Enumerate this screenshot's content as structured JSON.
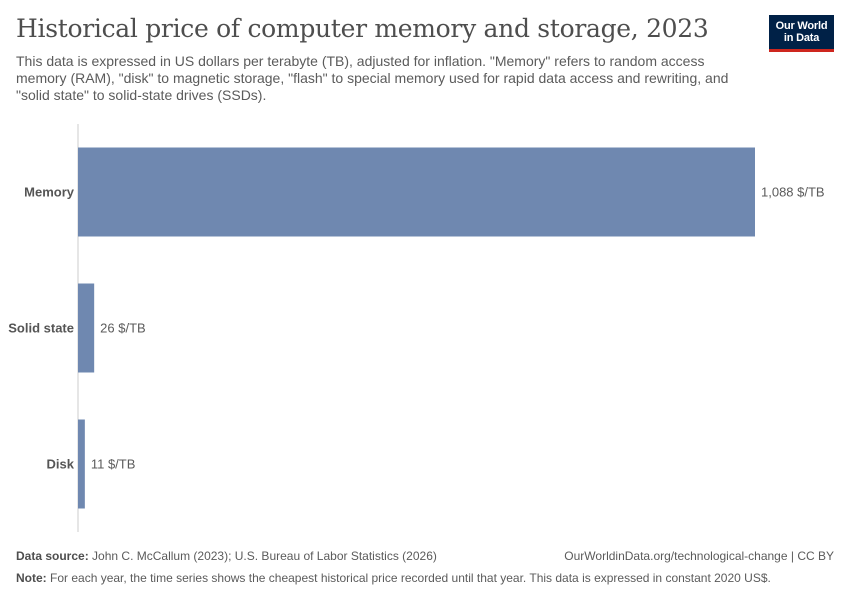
{
  "header": {
    "title": "Historical price of computer memory and storage, 2023",
    "subtitle": "This data is expressed in US dollars per terabyte (TB), adjusted for inflation. \"Memory\" refers to random access memory (RAM), \"disk\" to magnetic storage, \"flash\" to special memory used for rapid data access and rewriting, and \"solid state\" to solid-state drives (SSDs).",
    "logo_line1": "Our World",
    "logo_line2": "in Data"
  },
  "chart_data": {
    "type": "bar",
    "orientation": "horizontal",
    "categories": [
      "Memory",
      "Solid state",
      "Disk"
    ],
    "values": [
      1088,
      26,
      11
    ],
    "value_labels": [
      "1,088 $/TB",
      "26 $/TB",
      "11 $/TB"
    ],
    "color": "#6f88b0",
    "grid": false
  },
  "footer": {
    "source_label": "Data source:",
    "source_text": "John C. McCallum (2023); U.S. Bureau of Labor Statistics (2026)",
    "url": "OurWorldinData.org/technological-change | CC BY",
    "note_label": "Note:",
    "note_text": "For each year, the time series shows the cheapest historical price recorded until that year. This data is expressed in constant 2020 US$."
  }
}
